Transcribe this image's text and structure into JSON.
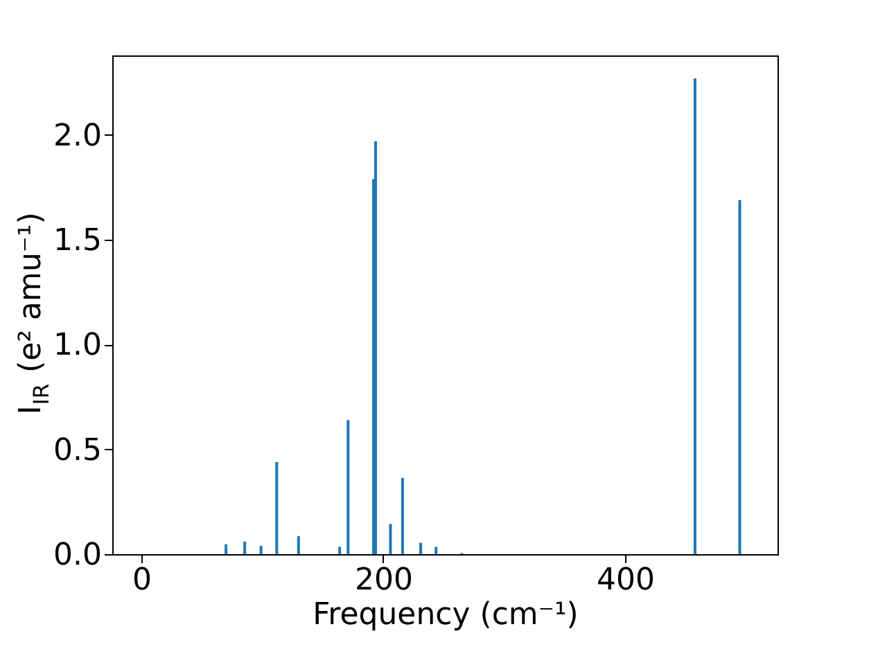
{
  "chart_data": {
    "type": "bar",
    "xlabel": "Frequency (cm⁻¹)",
    "ylabel": "I$_{IR}$ (e² amu⁻¹)",
    "x": [
      70,
      85.5,
      99,
      112,
      130,
      164,
      171,
      192,
      193.7,
      206,
      216,
      231,
      243.7,
      265,
      457.8,
      494.8
    ],
    "values": [
      0.047,
      0.06,
      0.04,
      0.44,
      0.086,
      0.035,
      0.64,
      1.79,
      1.97,
      0.144,
      0.364,
      0.054,
      0.035,
      0.005,
      2.27,
      1.69
    ],
    "color": "#1f77b4",
    "xlim": [
      -24,
      526
    ],
    "ylim": [
      0,
      2.38
    ],
    "xticks": [
      0,
      200,
      400
    ],
    "yticks": [
      {
        "value": 0,
        "label": "0.0"
      },
      {
        "value": 0.5,
        "label": "0.5"
      },
      {
        "value": 1,
        "label": "1.0"
      },
      {
        "value": 1.5,
        "label": "1.5"
      },
      {
        "value": 2,
        "label": "2.0"
      }
    ],
    "grid": false
  }
}
